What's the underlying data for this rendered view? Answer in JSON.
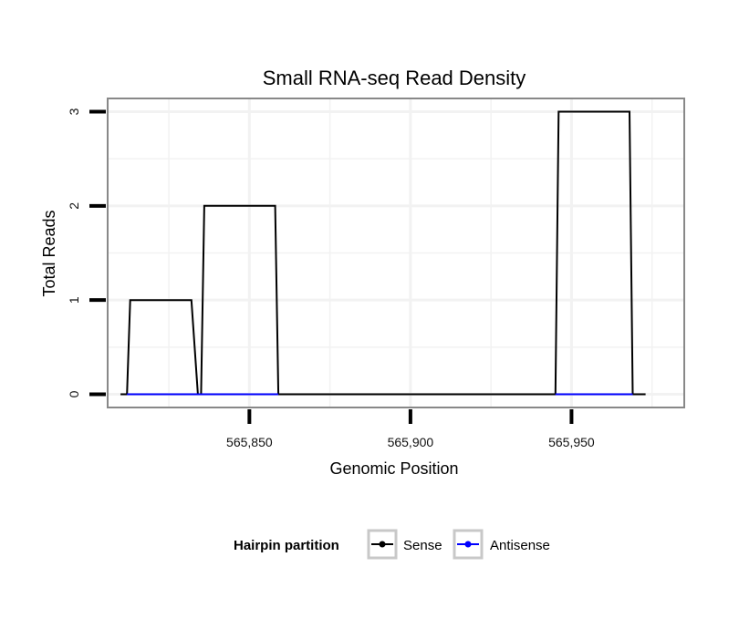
{
  "chart_data": {
    "type": "line",
    "title": "Small RNA-seq Read Density",
    "xlabel": "Genomic Position",
    "ylabel": "Total Reads",
    "xlim": [
      565806,
      565985
    ],
    "ylim": [
      -0.14,
      3.14
    ],
    "x_ticks": [
      565850,
      565900,
      565950
    ],
    "x_tick_labels": [
      "565,850",
      "565,900",
      "565,950"
    ],
    "y_ticks": [
      0,
      1,
      2,
      3
    ],
    "y_tick_labels": [
      "0",
      "1",
      "2",
      "3"
    ],
    "grid": true,
    "legend": {
      "title": "Hairpin partition",
      "position": "bottom",
      "entries": [
        "Sense",
        "Antisense"
      ]
    },
    "series": [
      {
        "name": "Sense",
        "color": "#000000",
        "x": [
          565810,
          565812,
          565813,
          565832,
          565834,
          565835,
          565836,
          565858,
          565859,
          565945,
          565946,
          565968,
          565969,
          565973
        ],
        "y": [
          0,
          0,
          1,
          1,
          0,
          0,
          2,
          2,
          0,
          0,
          3,
          3,
          0,
          0
        ]
      },
      {
        "name": "Antisense",
        "color": "#0000ff",
        "x": [
          565812,
          565859,
          565945,
          565969
        ],
        "y": [
          0,
          0,
          0,
          0
        ],
        "segments": [
          [
            565812,
            565859
          ],
          [
            565945,
            565969
          ]
        ]
      }
    ]
  }
}
